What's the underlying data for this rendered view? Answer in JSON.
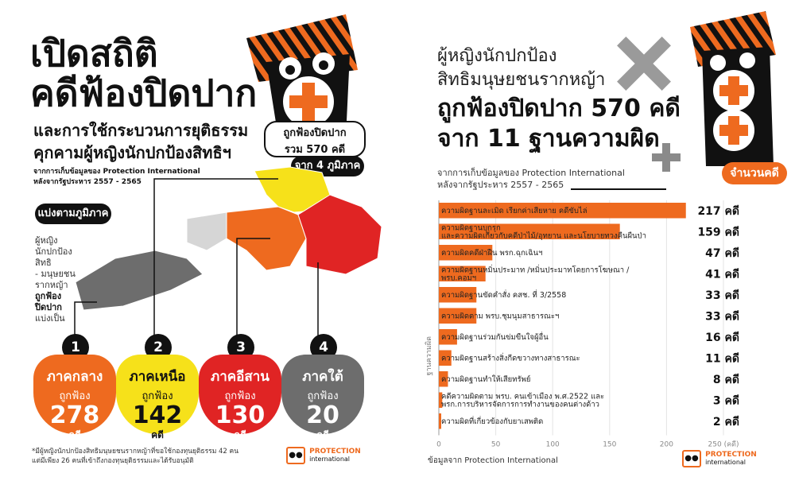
{
  "left": {
    "title_line1": "เปิดสถิติ",
    "title_line2": "คดีฟ้องปิดปาก",
    "subtitle_line1": "และการใช้กระบวนการยุติธรรม",
    "subtitle_line2": "คุกคามผู้หญิงนักปกป้องสิทธิฯ",
    "source_line1": "จากการเก็บข้อมูลของ Protection International",
    "source_line2": "หลังจากรัฐประหาร 2557 - 2565",
    "split_label": "แบ่งตามภูมิภาค",
    "total_bubble_line1": "ถูกฟ้องปิดปาก",
    "total_bubble_line2": "รวม 570 คดี",
    "regions_bubble": "จาก 4 ภูมิภาค",
    "side_note": [
      "ผู้หญิง",
      "นักปกป้อง",
      "สิทธิ",
      "- มนุษยชน",
      "รากหญ้า",
      "ถูกฟ้อง",
      "ปิดปาก",
      "แบ่งเป็น"
    ],
    "side_note_bold_from": 5,
    "regions": [
      {
        "no": "1",
        "name": "ภาคกลาง",
        "sub": "ถูกฟ้อง",
        "count": "278",
        "unit": "คดี",
        "color": "#ee6a1f"
      },
      {
        "no": "2",
        "name": "ภาคเหนือ",
        "sub": "ถูกฟ้อง",
        "count": "142",
        "unit": "คดี",
        "color": "#f6e11a"
      },
      {
        "no": "3",
        "name": "ภาคอีสาน",
        "sub": "ถูกฟ้อง",
        "count": "130",
        "unit": "คดี",
        "color": "#e02424"
      },
      {
        "no": "4",
        "name": "ภาคใต้",
        "sub": "ถูกฟ้อง",
        "count": "20",
        "unit": "คดี",
        "color": "#6d6d6d"
      }
    ],
    "footnote_line1": "*มีผู้หญิงนักปกป้องสิทธิมนุษยชนรากหญ้าที่ขอใช้กองทุนยุติธรรม 42 คน",
    "footnote_line2": "แต่มีเพียง 26 คนที่เข้าถึงกองทุนยุติธรรมและได้รับอนุมัติ",
    "logo_text1": "PROTECTION",
    "logo_text2": "international"
  },
  "right": {
    "title_line1": "ผู้หญิงนักปกป้อง",
    "title_line2": "สิทธิมนุษยชนรากหญ้า",
    "headline_line1": "ถูกฟ้องปิดปาก 570 คดี",
    "headline_line2": "จาก 11 ฐานความผิด",
    "source_line1": "จากการเก็บข้อมูลของ Protection International",
    "source_line2": "หลังจากรัฐประหาร 2557 - 2565",
    "count_badge": "จำนวนคดี",
    "footer_source": "ข้อมูลจาก Protection International",
    "logo_text1": "PROTECTION",
    "logo_text2": "international"
  },
  "chart_data": {
    "type": "bar",
    "orientation": "horizontal",
    "ylabel": "ฐานความผิด",
    "xlabel": "",
    "xlim": [
      0,
      250
    ],
    "xticks": [
      "0",
      "50",
      "100",
      "150",
      "200",
      "250 (คดี)"
    ],
    "tick_values": [
      0,
      50,
      100,
      150,
      200,
      250
    ],
    "bar_color": "#ee6a1f",
    "categories": [
      "ความผิดฐานละเมิด เรียกค่าเสียหาย คดีขับไล่",
      "ความผิดฐานบุกรุก และความผิดเกี่ยวกับคดีป่าไม้/อุทยาน และนโยบายทวงคืนผืนป่า",
      "ความผิดคดีฝ่าฝืน พรก.ฉุกเฉินฯ",
      "ความผิดฐานหมิ่นประมาท /หมิ่นประมาทโดยการโฆษณา / พรบ.คอมฯ",
      "ความผิดฐานขัดคำสั่ง คสช. ที่ 3/2558",
      "ความผิดตาม พรบ.ชุมนุมสาธารณะฯ",
      "ความผิดฐานร่วมกันข่มขืนใจผู้อื่น",
      "ความผิดฐานสร้างสิ่งกีดขวางทางสาธารณะ",
      "ความผิดฐานทำให้เสียทรัพย์",
      "คดีความผิดตาม พรบ. คนเข้าเมือง พ.ศ.2522 และ พรก.การบริหารจัดการการทำงานของคนต่างด้าว",
      "ความผิดที่เกี่ยวข้องกับยาเสพติด"
    ],
    "values": [
      217,
      159,
      47,
      41,
      33,
      33,
      16,
      11,
      8,
      3,
      2
    ],
    "value_labels": [
      "217 คดี",
      "159 คดี",
      "47 คดี",
      "41 คดี",
      "33 คดี",
      "33 คดี",
      "16 คดี",
      "11 คดี",
      "8 คดี",
      "3 คดี",
      "2 คดี"
    ],
    "grid": true
  }
}
